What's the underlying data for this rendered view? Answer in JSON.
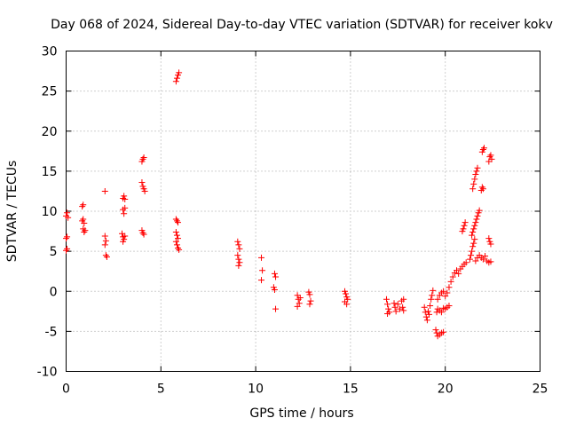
{
  "chart_data": {
    "type": "scatter",
    "title": "Day 068 of 2024, Sidereal Day-to-day VTEC variation (SDTVAR) for receiver kokv",
    "xlabel": "GPS time / hours",
    "ylabel": "SDTVAR / TECUs",
    "xlim": [
      0,
      25
    ],
    "ylim": [
      -10,
      30
    ],
    "xticks": [
      0,
      5,
      10,
      15,
      20,
      25
    ],
    "yticks": [
      -10,
      -5,
      0,
      5,
      10,
      15,
      20,
      25,
      30
    ],
    "grid": true,
    "marker": "+",
    "color": "#ff0000",
    "series": [
      {
        "name": "SDTVAR",
        "points": [
          [
            0.0,
            9.4
          ],
          [
            0.05,
            9.8
          ],
          [
            0.1,
            9.2
          ],
          [
            0.0,
            6.6
          ],
          [
            0.05,
            6.8
          ],
          [
            0.0,
            5.1
          ],
          [
            0.05,
            5.3
          ],
          [
            0.85,
            10.6
          ],
          [
            0.9,
            10.8
          ],
          [
            0.85,
            8.8
          ],
          [
            0.9,
            9.0
          ],
          [
            0.95,
            8.5
          ],
          [
            0.9,
            7.8
          ],
          [
            0.95,
            7.4
          ],
          [
            1.0,
            7.6
          ],
          [
            2.05,
            12.5
          ],
          [
            2.05,
            6.9
          ],
          [
            2.1,
            6.3
          ],
          [
            2.05,
            5.8
          ],
          [
            2.1,
            4.5
          ],
          [
            2.15,
            4.3
          ],
          [
            3.0,
            11.6
          ],
          [
            3.05,
            11.9
          ],
          [
            3.1,
            11.5
          ],
          [
            3.0,
            10.2
          ],
          [
            3.05,
            9.7
          ],
          [
            3.1,
            10.4
          ],
          [
            2.95,
            7.2
          ],
          [
            3.0,
            6.8
          ],
          [
            3.05,
            6.5
          ],
          [
            3.1,
            6.9
          ],
          [
            3.0,
            6.2
          ],
          [
            4.0,
            16.2
          ],
          [
            4.05,
            16.5
          ],
          [
            4.1,
            16.7
          ],
          [
            4.0,
            13.6
          ],
          [
            4.05,
            13.1
          ],
          [
            4.1,
            12.8
          ],
          [
            4.15,
            12.5
          ],
          [
            4.0,
            7.6
          ],
          [
            4.05,
            7.3
          ],
          [
            4.1,
            7.1
          ],
          [
            5.8,
            26.2
          ],
          [
            5.85,
            26.6
          ],
          [
            5.9,
            27.0
          ],
          [
            5.95,
            27.3
          ],
          [
            5.8,
            9.0
          ],
          [
            5.85,
            8.8
          ],
          [
            5.9,
            8.6
          ],
          [
            5.8,
            7.4
          ],
          [
            5.85,
            7.0
          ],
          [
            5.9,
            6.6
          ],
          [
            5.8,
            6.2
          ],
          [
            5.85,
            5.8
          ],
          [
            5.9,
            5.4
          ],
          [
            5.95,
            5.2
          ],
          [
            9.05,
            6.2
          ],
          [
            9.1,
            5.8
          ],
          [
            9.15,
            5.3
          ],
          [
            9.05,
            4.5
          ],
          [
            9.1,
            4.0
          ],
          [
            9.15,
            3.6
          ],
          [
            9.1,
            3.2
          ],
          [
            10.3,
            4.2
          ],
          [
            10.35,
            2.6
          ],
          [
            10.3,
            1.4
          ],
          [
            11.0,
            2.2
          ],
          [
            11.05,
            1.8
          ],
          [
            10.95,
            0.5
          ],
          [
            11.0,
            0.2
          ],
          [
            11.05,
            -2.2
          ],
          [
            12.2,
            -0.5
          ],
          [
            12.25,
            -1.0
          ],
          [
            12.3,
            -1.5
          ],
          [
            12.2,
            -1.9
          ],
          [
            12.35,
            -0.8
          ],
          [
            12.8,
            -0.1
          ],
          [
            12.85,
            -0.4
          ],
          [
            12.9,
            -1.2
          ],
          [
            12.85,
            -1.6
          ],
          [
            14.7,
            0.0
          ],
          [
            14.75,
            -0.3
          ],
          [
            14.8,
            -0.7
          ],
          [
            14.85,
            -1.0
          ],
          [
            14.7,
            -1.3
          ],
          [
            14.8,
            -1.6
          ],
          [
            16.9,
            -1.0
          ],
          [
            16.95,
            -1.6
          ],
          [
            17.0,
            -2.2
          ],
          [
            17.05,
            -2.6
          ],
          [
            16.95,
            -2.8
          ],
          [
            17.3,
            -1.5
          ],
          [
            17.35,
            -2.0
          ],
          [
            17.4,
            -2.5
          ],
          [
            17.5,
            -1.6
          ],
          [
            17.6,
            -2.2
          ],
          [
            17.7,
            -1.2
          ],
          [
            17.75,
            -2.0
          ],
          [
            17.8,
            -1.0
          ],
          [
            17.8,
            -2.4
          ],
          [
            18.9,
            -2.0
          ],
          [
            18.95,
            -2.6
          ],
          [
            19.0,
            -3.2
          ],
          [
            19.05,
            -3.6
          ],
          [
            19.1,
            -2.5
          ],
          [
            19.15,
            -2.9
          ],
          [
            19.2,
            -1.8
          ],
          [
            19.25,
            -1.0
          ],
          [
            19.3,
            -0.5
          ],
          [
            19.35,
            0.1
          ],
          [
            19.5,
            -4.8
          ],
          [
            19.55,
            -5.2
          ],
          [
            19.6,
            -5.6
          ],
          [
            19.7,
            -5.4
          ],
          [
            19.8,
            -5.2
          ],
          [
            19.9,
            -5.1
          ],
          [
            19.55,
            -2.6
          ],
          [
            19.6,
            -2.2
          ],
          [
            19.7,
            -2.4
          ],
          [
            19.8,
            -2.6
          ],
          [
            19.9,
            -2.1
          ],
          [
            20.0,
            -2.2
          ],
          [
            20.1,
            -2.0
          ],
          [
            20.2,
            -1.8
          ],
          [
            19.6,
            -1.0
          ],
          [
            19.7,
            -0.5
          ],
          [
            19.8,
            -0.2
          ],
          [
            19.9,
            0.0
          ],
          [
            20.0,
            -0.6
          ],
          [
            20.1,
            -0.2
          ],
          [
            20.2,
            0.5
          ],
          [
            20.3,
            1.2
          ],
          [
            20.4,
            1.8
          ],
          [
            20.5,
            2.3
          ],
          [
            20.6,
            2.6
          ],
          [
            20.7,
            2.2
          ],
          [
            20.8,
            2.8
          ],
          [
            20.9,
            3.1
          ],
          [
            21.0,
            3.4
          ],
          [
            21.1,
            3.6
          ],
          [
            20.9,
            7.5
          ],
          [
            20.95,
            7.8
          ],
          [
            21.0,
            8.2
          ],
          [
            21.05,
            8.6
          ],
          [
            21.3,
            4.0
          ],
          [
            21.35,
            4.5
          ],
          [
            21.4,
            5.0
          ],
          [
            21.45,
            5.6
          ],
          [
            21.5,
            6.0
          ],
          [
            21.55,
            6.5
          ],
          [
            21.4,
            7.0
          ],
          [
            21.45,
            7.4
          ],
          [
            21.5,
            7.8
          ],
          [
            21.55,
            8.2
          ],
          [
            21.6,
            8.6
          ],
          [
            21.65,
            9.0
          ],
          [
            21.7,
            9.4
          ],
          [
            21.75,
            9.8
          ],
          [
            21.8,
            10.1
          ],
          [
            21.45,
            12.8
          ],
          [
            21.5,
            13.4
          ],
          [
            21.55,
            14.0
          ],
          [
            21.6,
            14.6
          ],
          [
            21.65,
            15.0
          ],
          [
            21.7,
            15.4
          ],
          [
            21.6,
            3.8
          ],
          [
            21.7,
            4.2
          ],
          [
            21.8,
            4.5
          ],
          [
            21.9,
            4.2
          ],
          [
            22.0,
            4.0
          ],
          [
            22.1,
            4.4
          ],
          [
            21.9,
            12.6
          ],
          [
            21.95,
            13.0
          ],
          [
            22.0,
            12.8
          ],
          [
            21.95,
            17.4
          ],
          [
            22.0,
            17.7
          ],
          [
            22.05,
            17.9
          ],
          [
            22.2,
            3.8
          ],
          [
            22.3,
            3.6
          ],
          [
            22.4,
            3.7
          ],
          [
            22.3,
            16.2
          ],
          [
            22.35,
            16.8
          ],
          [
            22.4,
            17.0
          ],
          [
            22.45,
            16.5
          ],
          [
            22.3,
            6.6
          ],
          [
            22.35,
            6.2
          ],
          [
            22.4,
            5.9
          ]
        ]
      }
    ]
  }
}
